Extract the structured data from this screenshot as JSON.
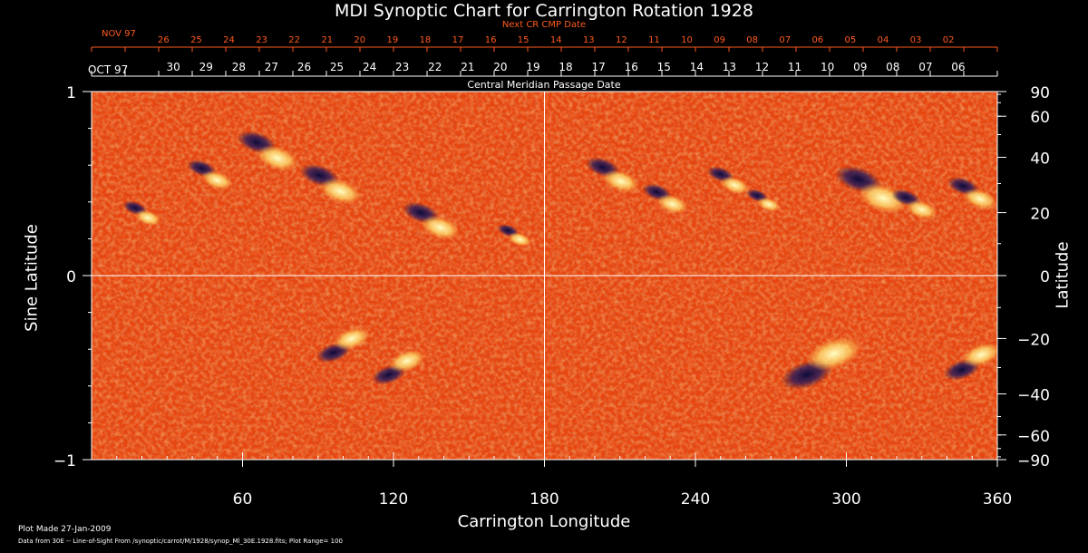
{
  "chart_data": {
    "type": "heatmap",
    "title": "MDI Synoptic Chart for Carrington Rotation 1928",
    "xlabel": "Carrington Longitude",
    "ylabel_left": "Sine Latitude",
    "ylabel_right": "Latitude",
    "xlim": [
      0,
      360
    ],
    "ylim": [
      -1,
      1
    ],
    "x_ticks": [
      60,
      120,
      180,
      240,
      300,
      360
    ],
    "y_ticks_left": [
      -1,
      0,
      1
    ],
    "y_ticks_right": [
      -90,
      -60,
      -40,
      -20,
      0,
      20,
      40,
      60,
      90
    ],
    "top_axis_title": "Central Meridian Passage Date",
    "top_axis_start_label": "OCT 97",
    "top_axis_days": [
      "30",
      "29",
      "28",
      "27",
      "26",
      "25",
      "24",
      "23",
      "22",
      "21",
      "20",
      "19",
      "18",
      "17",
      "16",
      "15",
      "14",
      "13",
      "12",
      "11",
      "10",
      "09",
      "08",
      "07",
      "06"
    ],
    "next_axis_title": "Next CR CMP Date",
    "next_axis_start_label": "NOV 97",
    "next_axis_days": [
      "26",
      "25",
      "24",
      "23",
      "22",
      "21",
      "20",
      "19",
      "18",
      "17",
      "16",
      "15",
      "14",
      "13",
      "12",
      "11",
      "10",
      "09",
      "08",
      "07",
      "06",
      "05",
      "04",
      "03",
      "02"
    ],
    "plot_range": 100,
    "colors": {
      "background_field": "#e8460f",
      "positive_polarity": "#fff2a0",
      "negative_polarity": "#1c1450",
      "axis": "#ffffff",
      "next_axis": "#ff5a1e"
    },
    "active_regions": [
      {
        "lon": 20,
        "lat_sine": 0.34,
        "size": 1.0
      },
      {
        "lon": 47,
        "lat_sine": 0.55,
        "size": 1.2
      },
      {
        "lon": 70,
        "lat_sine": 0.68,
        "size": 1.6
      },
      {
        "lon": 95,
        "lat_sine": 0.5,
        "size": 1.6
      },
      {
        "lon": 135,
        "lat_sine": 0.3,
        "size": 1.5
      },
      {
        "lon": 168,
        "lat_sine": 0.22,
        "size": 0.9
      },
      {
        "lon": 207,
        "lat_sine": 0.55,
        "size": 1.4
      },
      {
        "lon": 228,
        "lat_sine": 0.42,
        "size": 1.2
      },
      {
        "lon": 253,
        "lat_sine": 0.52,
        "size": 1.1
      },
      {
        "lon": 267,
        "lat_sine": 0.41,
        "size": 0.9
      },
      {
        "lon": 310,
        "lat_sine": 0.47,
        "size": 1.9
      },
      {
        "lon": 327,
        "lat_sine": 0.39,
        "size": 1.2
      },
      {
        "lon": 350,
        "lat_sine": 0.45,
        "size": 1.3
      },
      {
        "lon": 100,
        "lat_sine": -0.38,
        "size": 1.4
      },
      {
        "lon": 122,
        "lat_sine": -0.5,
        "size": 1.4
      },
      {
        "lon": 290,
        "lat_sine": -0.48,
        "size": 2.1
      },
      {
        "lon": 350,
        "lat_sine": -0.47,
        "size": 1.5
      }
    ]
  },
  "footer": {
    "plot_made": "Plot Made 27-Jan-2009",
    "data_source": "Data from 30E -- Line-of-Sight From /synoptic/carrot/M/1928/synop_Ml_30E.1928.fits; Plot Range= 100"
  }
}
